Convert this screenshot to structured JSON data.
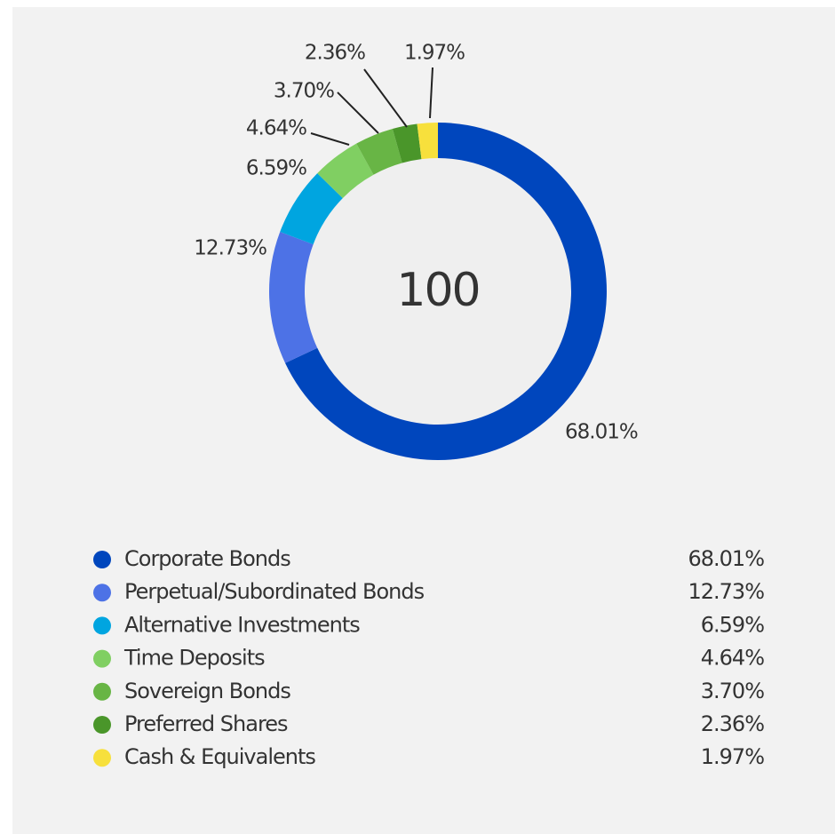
{
  "chart_data": {
    "type": "donut",
    "center_text": "100",
    "categories": [
      "Corporate Bonds",
      "Perpetual/Subordinated Bonds",
      "Alternative Investments",
      "Time Deposits",
      "Sovereign Bonds",
      "Preferred Shares",
      "Cash & Equivalents"
    ],
    "values": [
      68.01,
      12.73,
      6.59,
      4.64,
      3.7,
      2.36,
      1.97
    ],
    "value_labels": [
      "68.01%",
      "12.73%",
      "6.59%",
      "4.64%",
      "3.70%",
      "2.36%",
      "1.97%"
    ],
    "colors": [
      "#0046bd",
      "#4d72e6",
      "#00a5e0",
      "#80cf62",
      "#68b545",
      "#4a962a",
      "#f7e03c"
    ],
    "legend": "bottom"
  }
}
